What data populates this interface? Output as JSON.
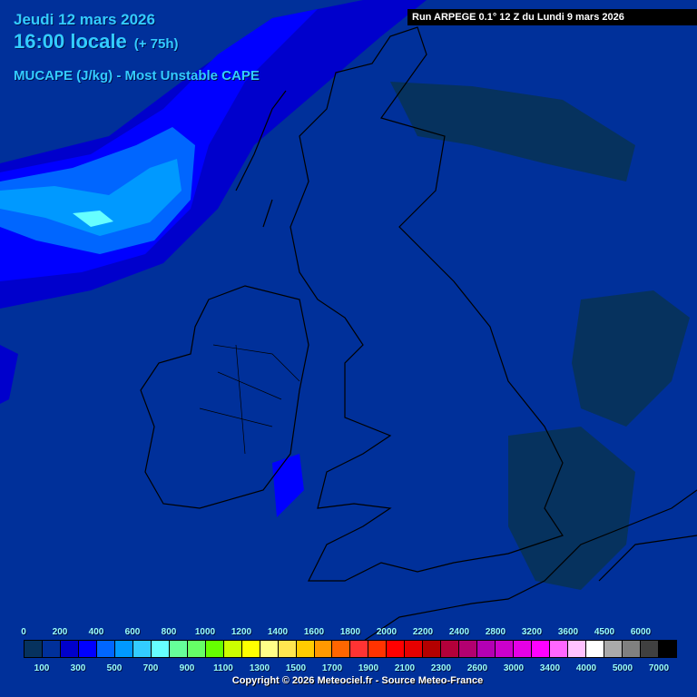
{
  "header": {
    "date": "Jeudi 12 mars 2026",
    "time": "16:00 locale",
    "lead": "(+ 75h)",
    "parameter": "MUCAPE (J/kg) - Most Unstable CAPE"
  },
  "run_info": "Run ARPEGE 0.1° 12 Z du Lundi 9 mars 2026",
  "legend": {
    "top_labels": [
      "0",
      "200",
      "400",
      "600",
      "800",
      "1000",
      "1200",
      "1400",
      "1600",
      "1800",
      "2000",
      "2200",
      "2400",
      "2800",
      "3200",
      "3600",
      "4500",
      "6000"
    ],
    "bottom_labels": [
      "100",
      "300",
      "500",
      "700",
      "900",
      "1100",
      "1300",
      "1500",
      "1700",
      "1900",
      "2100",
      "2300",
      "2600",
      "3000",
      "3400",
      "4000",
      "5000",
      "7000"
    ],
    "colors": [
      "#06325e",
      "#00309a",
      "#0000cc",
      "#0000ff",
      "#0066ff",
      "#0099ff",
      "#33ccff",
      "#66ffff",
      "#66ff99",
      "#66ff66",
      "#66ff00",
      "#ccff00",
      "#ffff00",
      "#ffff88",
      "#ffe650",
      "#ffcc00",
      "#ff9900",
      "#ff6600",
      "#ff3333",
      "#ff3300",
      "#ff0000",
      "#e60000",
      "#b30000",
      "#b3003a",
      "#b30070",
      "#b300b3",
      "#cc00cc",
      "#e600e6",
      "#ff00ff",
      "#ff66ff",
      "#ffc2ff",
      "#ffffff",
      "#aaaaaa",
      "#808080",
      "#404040",
      "#000000"
    ]
  },
  "copyright": "Copyright © 2026 Meteociel.fr - Source Meteo-France"
}
